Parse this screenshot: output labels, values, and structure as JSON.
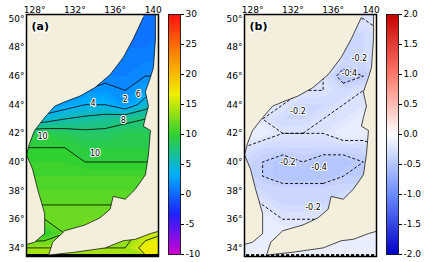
{
  "chart_data": [
    {
      "type": "contour_map",
      "title": "(a)",
      "line_style": "solid",
      "xlim": [
        127.2,
        140.3
      ],
      "xticks": [
        {
          "value": 128,
          "label": "128°"
        },
        {
          "value": 132,
          "label": "132°"
        },
        {
          "value": 136,
          "label": "136°"
        },
        {
          "value": 140,
          "label": "140°"
        }
      ],
      "ylim": [
        33.4,
        50.3
      ],
      "yticks": [
        {
          "value": 34,
          "label": "34°"
        },
        {
          "value": 36,
          "label": "36°"
        },
        {
          "value": 38,
          "label": "38°"
        },
        {
          "value": 40,
          "label": "40°"
        },
        {
          "value": 42,
          "label": "42°"
        },
        {
          "value": 44,
          "label": "44°"
        },
        {
          "value": 46,
          "label": "46°"
        },
        {
          "value": 48,
          "label": "48°"
        },
        {
          "value": 50,
          "label": "50°"
        }
      ],
      "colorbar": {
        "range": [
          -10,
          30
        ],
        "ticks": [
          -10,
          -5,
          0,
          5,
          10,
          15,
          20,
          25,
          30
        ],
        "colors": [
          "#d000d0",
          "#2020ff",
          "#00b0ff",
          "#30d030",
          "#f0f000",
          "#ff8800",
          "#ff1010"
        ]
      },
      "field": {
        "lon": [
          127,
          129,
          131,
          133,
          135,
          137,
          139,
          141
        ],
        "lat": [
          50,
          49,
          48,
          47,
          46,
          45,
          44,
          43,
          42,
          41,
          40,
          39,
          38,
          37,
          36,
          35,
          34
        ],
        "values": [
          [
            0,
            0,
            0,
            0,
            0,
            0.5,
            0.5,
            0.5
          ],
          [
            0,
            0,
            0,
            0,
            0.5,
            0.5,
            0.5,
            1
          ],
          [
            0.5,
            0.5,
            0.5,
            0.5,
            0.5,
            1,
            1,
            1
          ],
          [
            1,
            1,
            1,
            1,
            1,
            1,
            1.5,
            1.5
          ],
          [
            1.5,
            1.5,
            1.5,
            1.5,
            1.5,
            1.5,
            2,
            2
          ],
          [
            1.5,
            1.5,
            1.5,
            2,
            2.5,
            2,
            3,
            5
          ],
          [
            2,
            2,
            3,
            4,
            4,
            2.5,
            5,
            7
          ],
          [
            5,
            5,
            6,
            6.5,
            7,
            7.5,
            8,
            8.5
          ],
          [
            9,
            9.5,
            9,
            8.5,
            8.5,
            9,
            9,
            9
          ],
          [
            10,
            10,
            10,
            9.5,
            9.5,
            9.5,
            9.5,
            9.5
          ],
          [
            10.5,
            10.5,
            10.5,
            10,
            10,
            10,
            10,
            10
          ],
          [
            11,
            11,
            11,
            11,
            11,
            11,
            11,
            11
          ],
          [
            11.5,
            11.5,
            11.5,
            11.5,
            11.5,
            11.5,
            11.5,
            11.5
          ],
          [
            12,
            12,
            12,
            12,
            12,
            12,
            12,
            12
          ],
          [
            12,
            12,
            12,
            12.5,
            12.5,
            12.5,
            13,
            13
          ],
          [
            9.5,
            10,
            12,
            13,
            13,
            13,
            15,
            16
          ],
          [
            14,
            14,
            14,
            14,
            14,
            14,
            17,
            18
          ]
        ]
      },
      "contour_levels": [
        0,
        2,
        4,
        6,
        8,
        10,
        12,
        14,
        16,
        18
      ],
      "contour_labels": [
        {
          "text": "4",
          "lon": 133.8,
          "lat": 44.1
        },
        {
          "text": "2",
          "lon": 137.0,
          "lat": 44.4
        },
        {
          "text": "6",
          "lon": 138.3,
          "lat": 44.7
        },
        {
          "text": "8",
          "lon": 136.8,
          "lat": 42.9
        },
        {
          "text": "10",
          "lon": 128.8,
          "lat": 41.8
        },
        {
          "text": "10",
          "lon": 134.0,
          "lat": 40.6
        }
      ],
      "land": [
        [
          [
            138.8,
            50.1
          ],
          [
            137.8,
            48.6
          ],
          [
            136.8,
            47.3
          ],
          [
            135.5,
            46.1
          ],
          [
            134.0,
            45.2
          ],
          [
            132.5,
            44.6
          ],
          [
            131.0,
            44.2
          ],
          [
            130.0,
            43.9
          ],
          [
            129.0,
            43.1
          ],
          [
            128.0,
            42.2
          ],
          [
            127.5,
            41.3
          ],
          [
            127.2,
            40.5
          ],
          [
            127.8,
            39.5
          ],
          [
            128.3,
            38.1
          ],
          [
            129.0,
            36.4
          ],
          [
            129.0,
            35.0
          ],
          [
            128.0,
            34.4
          ],
          [
            127.0,
            34.2
          ],
          [
            126.0,
            34.2
          ],
          [
            126.0,
            51.0
          ],
          [
            138.8,
            51.0
          ]
        ],
        [
          [
            140.0,
            51.0
          ],
          [
            140.0,
            50.3
          ],
          [
            140.0,
            48.6
          ],
          [
            139.8,
            46.6
          ],
          [
            139.5,
            45.9
          ],
          [
            139.0,
            44.9
          ],
          [
            139.3,
            43.9
          ],
          [
            139.0,
            43.1
          ],
          [
            138.8,
            42.5
          ],
          [
            139.5,
            42.2
          ],
          [
            139.3,
            40.5
          ],
          [
            139.0,
            39.1
          ],
          [
            138.0,
            38.1
          ],
          [
            137.0,
            37.4
          ],
          [
            135.8,
            37.6
          ],
          [
            135.5,
            36.7
          ],
          [
            134.5,
            36.1
          ],
          [
            133.0,
            35.6
          ],
          [
            131.0,
            35.2
          ],
          [
            129.8,
            34.4
          ],
          [
            129.4,
            33.5
          ],
          [
            132.0,
            33.7
          ],
          [
            135.0,
            34.0
          ],
          [
            136.8,
            34.5
          ],
          [
            138.0,
            34.6
          ],
          [
            139.5,
            35.0
          ],
          [
            140.5,
            35.2
          ],
          [
            142.0,
            35.2
          ],
          [
            142.0,
            51.0
          ]
        ]
      ]
    },
    {
      "type": "contour_map",
      "title": "(b)",
      "line_style": "dashed",
      "xlim": [
        127.2,
        140.3
      ],
      "xticks": [
        {
          "value": 128,
          "label": "128°"
        },
        {
          "value": 132,
          "label": "132°"
        },
        {
          "value": 136,
          "label": "136°"
        },
        {
          "value": 140,
          "label": "140°"
        }
      ],
      "ylim": [
        33.4,
        50.3
      ],
      "yticks": [
        {
          "value": 34,
          "label": "34°"
        },
        {
          "value": 36,
          "label": "36°"
        },
        {
          "value": 38,
          "label": "38°"
        },
        {
          "value": 40,
          "label": "40°"
        },
        {
          "value": 42,
          "label": "42°"
        },
        {
          "value": 44,
          "label": "44°"
        },
        {
          "value": 46,
          "label": "46°"
        },
        {
          "value": 48,
          "label": "48°"
        },
        {
          "value": 50,
          "label": "50°"
        }
      ],
      "colorbar": {
        "range": [
          -2,
          2
        ],
        "ticks": [
          {
            "value": -2,
            "label": "-2.0"
          },
          {
            "value": -1.5,
            "label": "-1.5"
          },
          {
            "value": -1,
            "label": "-1.0"
          },
          {
            "value": -0.5,
            "label": "-0.5"
          },
          {
            "value": 0,
            "label": "0.0"
          },
          {
            "value": 0.5,
            "label": "0.5"
          },
          {
            "value": 1,
            "label": "1.0"
          },
          {
            "value": 1.5,
            "label": "1.5"
          },
          {
            "value": 2,
            "label": "2.0"
          }
        ],
        "colors": [
          "#0000c8",
          "#6b8cff",
          "#ffffff",
          "#ff7a6b",
          "#c80000"
        ]
      },
      "field": {
        "lon": [
          127,
          129,
          131,
          133,
          135,
          137,
          139,
          141
        ],
        "lat": [
          50,
          49,
          48,
          47,
          46,
          45,
          44,
          43,
          42,
          41,
          40,
          39,
          38,
          37,
          36,
          35,
          34
        ],
        "values": [
          [
            -0.1,
            -0.1,
            -0.1,
            -0.1,
            -0.1,
            -0.2,
            -0.2,
            -0.2
          ],
          [
            -0.1,
            -0.1,
            -0.1,
            -0.1,
            -0.2,
            -0.3,
            -0.3,
            -0.2
          ],
          [
            -0.1,
            -0.1,
            -0.1,
            -0.1,
            -0.2,
            -0.3,
            -0.3,
            -0.2
          ],
          [
            -0.1,
            -0.1,
            -0.1,
            -0.1,
            -0.2,
            -0.3,
            -0.3,
            -0.2
          ],
          [
            -0.1,
            -0.1,
            -0.1,
            -0.1,
            -0.2,
            -0.5,
            -0.4,
            -0.2
          ],
          [
            -0.1,
            -0.1,
            -0.1,
            -0.2,
            -0.2,
            -0.3,
            -0.2,
            -0.1
          ],
          [
            -0.1,
            -0.1,
            -0.2,
            -0.3,
            -0.3,
            -0.2,
            -0.2,
            -0.1
          ],
          [
            -0.1,
            -0.2,
            -0.3,
            -0.3,
            -0.2,
            -0.2,
            -0.1,
            -0.1
          ],
          [
            -0.1,
            -0.1,
            -0.2,
            -0.2,
            -0.2,
            -0.1,
            -0.1,
            -0.1
          ],
          [
            -0.2,
            -0.3,
            -0.3,
            -0.3,
            -0.3,
            -0.3,
            -0.3,
            -0.2
          ],
          [
            -0.3,
            -0.4,
            -0.5,
            -0.4,
            -0.5,
            -0.5,
            -0.4,
            -0.3
          ],
          [
            -0.3,
            -0.4,
            -0.5,
            -0.5,
            -0.5,
            -0.4,
            -0.4,
            -0.3
          ],
          [
            -0.2,
            -0.3,
            -0.3,
            -0.3,
            -0.3,
            -0.3,
            -0.3,
            -0.2
          ],
          [
            -0.1,
            -0.2,
            -0.3,
            -0.3,
            -0.3,
            -0.2,
            -0.2,
            -0.1
          ],
          [
            -0.1,
            -0.1,
            -0.2,
            -0.2,
            -0.2,
            -0.1,
            -0.1,
            -0.1
          ],
          [
            -0.1,
            -0.1,
            -0.1,
            -0.1,
            -0.1,
            -0.1,
            -0.1,
            -0.1
          ],
          [
            -0.1,
            -0.1,
            -0.1,
            -0.1,
            -0.1,
            -0.1,
            -0.1,
            -0.1
          ]
        ]
      },
      "contour_levels": [
        -0.8,
        -0.6,
        -0.4,
        -0.2
      ],
      "contour_labels": [
        {
          "text": "-0.2",
          "lon": 138.6,
          "lat": 47.2
        },
        {
          "text": "-0.4",
          "lon": 137.6,
          "lat": 46.2
        },
        {
          "text": "-0.2",
          "lon": 132.5,
          "lat": 43.5
        },
        {
          "text": "-0.2",
          "lon": 131.5,
          "lat": 40.0
        },
        {
          "text": "-0.4",
          "lon": 134.6,
          "lat": 39.6
        },
        {
          "text": "-0.2",
          "lon": 134.0,
          "lat": 36.8
        }
      ],
      "land": [
        [
          [
            138.8,
            50.1
          ],
          [
            137.8,
            48.6
          ],
          [
            136.8,
            47.3
          ],
          [
            135.5,
            46.1
          ],
          [
            134.0,
            45.2
          ],
          [
            132.5,
            44.6
          ],
          [
            131.0,
            44.2
          ],
          [
            130.0,
            43.9
          ],
          [
            129.0,
            43.1
          ],
          [
            128.0,
            42.2
          ],
          [
            127.5,
            41.3
          ],
          [
            127.2,
            40.5
          ],
          [
            127.8,
            39.5
          ],
          [
            128.3,
            38.1
          ],
          [
            129.0,
            36.4
          ],
          [
            129.0,
            35.0
          ],
          [
            128.0,
            34.4
          ],
          [
            127.0,
            34.2
          ],
          [
            126.0,
            34.2
          ],
          [
            126.0,
            51.0
          ],
          [
            138.8,
            51.0
          ]
        ],
        [
          [
            140.0,
            51.0
          ],
          [
            140.0,
            50.3
          ],
          [
            140.0,
            48.6
          ],
          [
            139.8,
            46.6
          ],
          [
            139.5,
            45.9
          ],
          [
            139.0,
            44.9
          ],
          [
            139.3,
            43.9
          ],
          [
            139.0,
            43.1
          ],
          [
            138.8,
            42.5
          ],
          [
            139.5,
            42.2
          ],
          [
            139.3,
            40.5
          ],
          [
            139.0,
            39.1
          ],
          [
            138.0,
            38.1
          ],
          [
            137.0,
            37.4
          ],
          [
            135.8,
            37.6
          ],
          [
            135.5,
            36.7
          ],
          [
            134.5,
            36.1
          ],
          [
            133.0,
            35.6
          ],
          [
            131.0,
            35.2
          ],
          [
            129.8,
            34.4
          ],
          [
            129.4,
            33.5
          ],
          [
            132.0,
            33.7
          ],
          [
            135.0,
            34.0
          ],
          [
            136.8,
            34.5
          ],
          [
            138.0,
            34.6
          ],
          [
            139.5,
            35.0
          ],
          [
            140.5,
            35.2
          ],
          [
            142.0,
            35.2
          ],
          [
            142.0,
            51.0
          ]
        ]
      ]
    }
  ]
}
